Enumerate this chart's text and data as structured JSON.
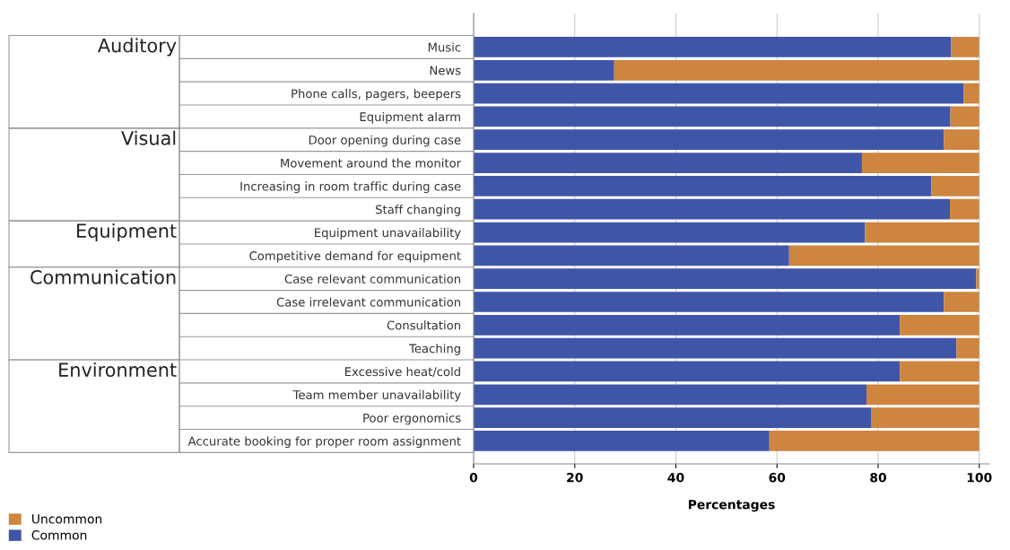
{
  "chart_data": {
    "type": "bar",
    "orientation": "horizontal",
    "stacked": true,
    "xlabel": "Percentages",
    "categories": [
      "Music",
      "News",
      "Phone calls, pagers, beepers",
      "Equipment alarm",
      "Door opening during case",
      "Movement around the monitor",
      "Increasing in room traffic during case",
      "Staff changing",
      "Equipment unavailability",
      "Competitive demand for equipment",
      "Case relevant communication",
      "Case irrelevant communication",
      "Consultation",
      "Teaching",
      "Excessive heat/cold",
      "Team member unavailability",
      "Poor ergonomics",
      "Accurate booking for proper room assignment"
    ],
    "series": [
      {
        "name": "Common",
        "color": "#3f56a8",
        "values": [
          94.4,
          27.8,
          96.9,
          94.3,
          93.0,
          76.8,
          90.5,
          94.2,
          77.4,
          62.4,
          99.4,
          93.0,
          84.3,
          95.5,
          84.3,
          77.7,
          78.7,
          58.5
        ]
      },
      {
        "name": "Uncommon",
        "color": "#cd853f",
        "values": [
          5.6,
          72.2,
          3.1,
          5.7,
          7.0,
          23.2,
          9.5,
          5.8,
          22.6,
          37.6,
          0.6,
          7.0,
          15.7,
          4.5,
          15.7,
          22.3,
          21.3,
          41.5
        ]
      }
    ],
    "xlim": [
      0,
      102
    ],
    "xticks": [
      0,
      20,
      40,
      60,
      80,
      100
    ],
    "grid": "x",
    "legend": "bottom left",
    "annotations": [
      "Auditory",
      "Visual",
      "Equipment",
      "Communication",
      "Environment"
    ]
  }
}
